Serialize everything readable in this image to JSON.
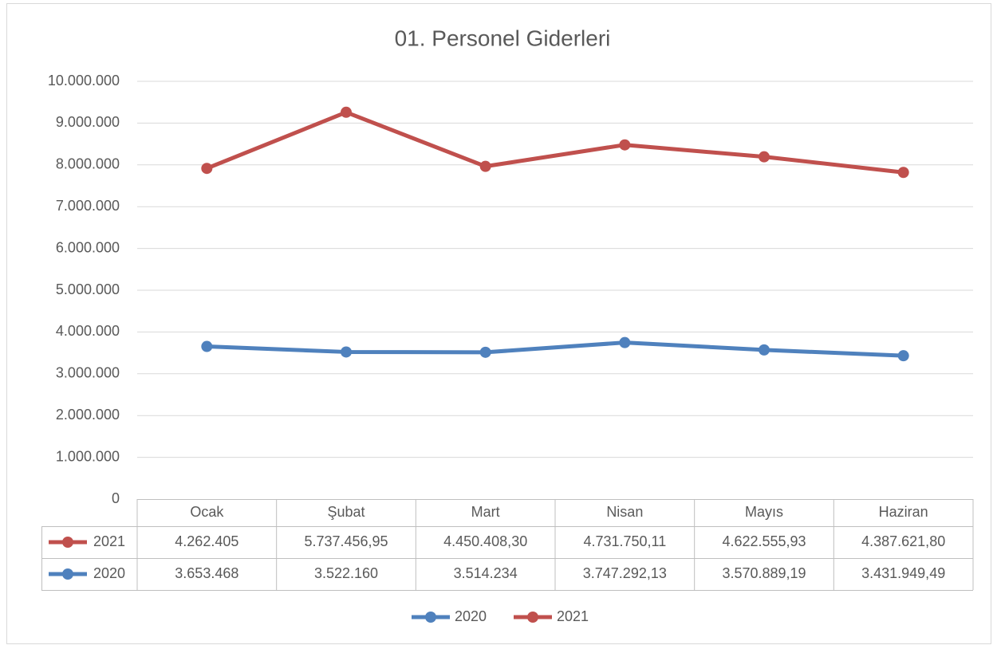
{
  "chart_data": {
    "type": "line",
    "stacked": true,
    "title": "01. Personel Giderleri",
    "categories": [
      "Ocak",
      "Şubat",
      "Mart",
      "Nisan",
      "Mayıs",
      "Haziran"
    ],
    "series": [
      {
        "name": "2020",
        "color": "#4f81bd",
        "values": [
          3653468,
          3522160,
          3514234,
          3747292.13,
          3570889.19,
          3431949.49
        ],
        "value_labels": [
          "3.653.468",
          "3.522.160",
          "3.514.234",
          "3.747.292,13",
          "3.570.889,19",
          "3.431.949,49"
        ]
      },
      {
        "name": "2021",
        "color": "#c0504d",
        "values": [
          4262405,
          5737456.95,
          4450408.3,
          4731750.11,
          4622555.93,
          4387621.8
        ],
        "value_labels": [
          "4.262.405",
          "5.737.456,95",
          "4.450.408,30",
          "4.731.750,11",
          "4.622.555,93",
          "4.387.621,80"
        ]
      }
    ],
    "ylim": [
      0,
      10000000
    ],
    "yticks": [
      0,
      {
        "value": 1000000,
        "label": "1.000.000"
      },
      {
        "value": 2000000,
        "label": "2.000.000"
      },
      {
        "value": 3000000,
        "label": "3.000.000"
      },
      {
        "value": 4000000,
        "label": "4.000.000"
      },
      {
        "value": 5000000,
        "label": "5.000.000"
      },
      {
        "value": 6000000,
        "label": "6.000.000"
      },
      {
        "value": 7000000,
        "label": "7.000.000"
      },
      {
        "value": 8000000,
        "label": "8.000.000"
      },
      {
        "value": 9000000,
        "label": "9.000.000"
      },
      {
        "value": 10000000,
        "label": "10.000.000"
      }
    ],
    "grid": true,
    "data_table": true,
    "legend": "bottom"
  }
}
